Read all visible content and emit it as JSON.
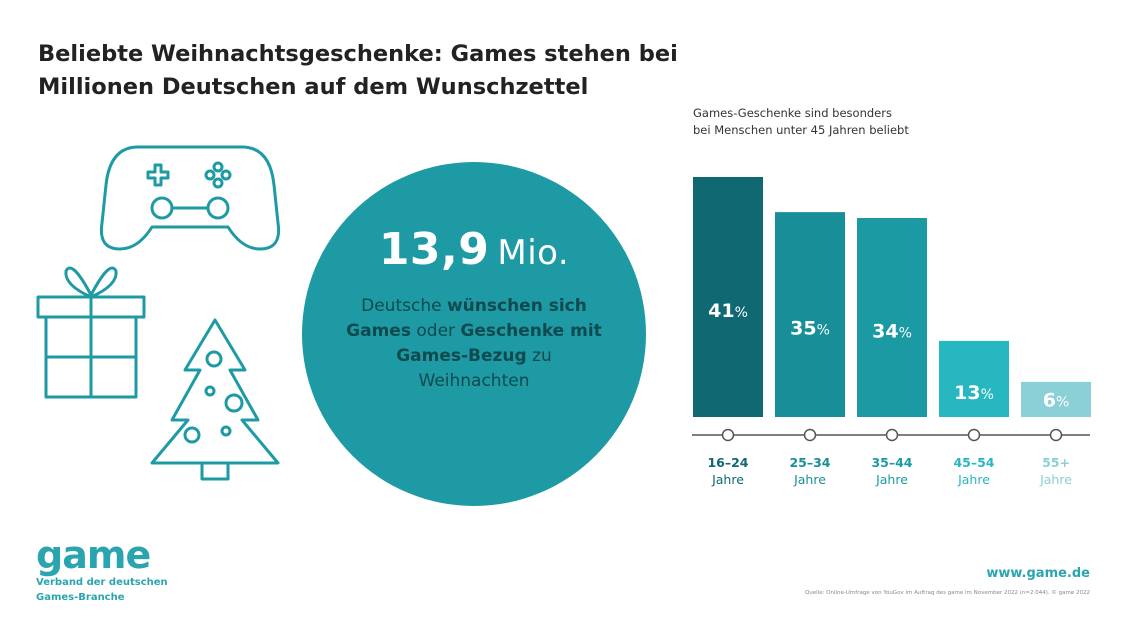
{
  "title_lines": [
    "Beliebte Weihnachtsgeschenke: Games stehen bei",
    "Millionen Deutschen auf dem Wunschzettel"
  ],
  "headline": {
    "number": "13,9",
    "unit": "Mio."
  },
  "description": {
    "p1": "Deutsche ",
    "b1": "wünschen sich Games",
    "p2": " oder ",
    "b2": "Geschenke mit Games-Bezug",
    "p3": " zu Weihnachten"
  },
  "chart_subtitle": "Games-Geschenke sind besonders bei Menschen unter 45 Jahren beliebt",
  "chart_data": {
    "type": "bar",
    "categories": [
      "16–24 Jahre",
      "25–34 Jahre",
      "35–44 Jahre",
      "45–54 Jahre",
      "55+ Jahre"
    ],
    "values": [
      41,
      35,
      34,
      13,
      6
    ],
    "value_suffix": "%",
    "ylim": [
      0,
      41
    ],
    "grid": false,
    "colors": [
      "#0f6872",
      "#188f98",
      "#1b9aa3",
      "#27b7c0",
      "#8ad0d6"
    ],
    "label_colors": [
      "#0f6872",
      "#188f98",
      "#1b9aa3",
      "#27b7c0",
      "#8ad0d6"
    ]
  },
  "logo": {
    "word": "game",
    "line1": "Verband der deutschen",
    "line2": "Games-Branche"
  },
  "url": "www.game.de",
  "source": "Quelle: Online-Umfrage von YouGov im Auftrag des game im November 2022 (n=2.044). © game 2022",
  "icons": [
    "gamepad-icon",
    "gift-icon",
    "christmas-tree-icon"
  ],
  "colors": {
    "accent": "#1d9aa3",
    "dark_teal": "#0f6872",
    "outline": "#1d9aa3"
  }
}
